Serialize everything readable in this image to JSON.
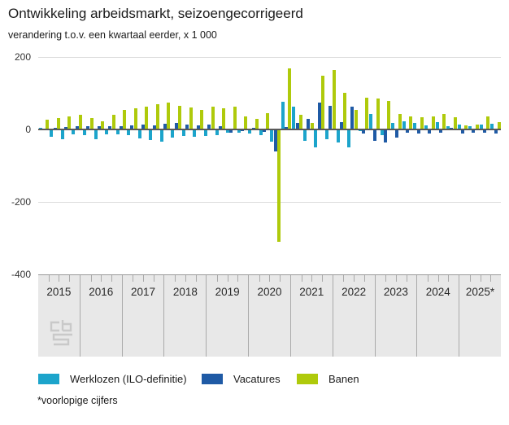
{
  "header": {
    "title": "Ontwikkeling arbeidsmarkt, seizoengecorrigeerd",
    "subtitle": "verandering t.o.v. een kwartaal eerder, x 1 000"
  },
  "footnote": "*voorlopige cijfers",
  "colors": {
    "werklozen": "#1ca4cb",
    "vacatures": "#1f5aa5",
    "banen": "#afca0b",
    "zero_axis": "#595959",
    "gridline": "#dcdcdc",
    "band_background": "#e8e8e8",
    "logo_gray": "#c9c9c9"
  },
  "legend": {
    "items": [
      {
        "label": "Werklozen (ILO-definitie)",
        "series": "werklozen"
      },
      {
        "label": "Vacatures",
        "series": "vacatures"
      },
      {
        "label": "Banen",
        "series": "banen"
      }
    ]
  },
  "axis": {
    "yticks": [
      200,
      0,
      -200,
      -400
    ],
    "years": [
      "2015",
      "2016",
      "2017",
      "2018",
      "2019",
      "2020",
      "2021",
      "2022",
      "2023",
      "2024",
      "2025*"
    ]
  },
  "logo_name": "cbs-logo",
  "chart_data": {
    "type": "bar",
    "title": "Ontwikkeling arbeidsmarkt, seizoengecorrigeerd",
    "subtitle": "verandering t.o.v. een kwartaal eerder, x 1 000",
    "xlabel": "",
    "ylabel": "verandering t.o.v. een kwartaal eerder, x 1 000",
    "ylim": [
      -400,
      200
    ],
    "grid": "horizontal",
    "legend_position": "bottom",
    "categories": [
      "2015 Q1",
      "2015 Q2",
      "2015 Q3",
      "2015 Q4",
      "2016 Q1",
      "2016 Q2",
      "2016 Q3",
      "2016 Q4",
      "2017 Q1",
      "2017 Q2",
      "2017 Q3",
      "2017 Q4",
      "2018 Q1",
      "2018 Q2",
      "2018 Q3",
      "2018 Q4",
      "2019 Q1",
      "2019 Q2",
      "2019 Q3",
      "2019 Q4",
      "2020 Q1",
      "2020 Q2",
      "2020 Q3",
      "2020 Q4",
      "2021 Q1",
      "2021 Q2",
      "2021 Q3",
      "2021 Q4",
      "2022 Q1",
      "2022 Q2",
      "2022 Q3",
      "2022 Q4",
      "2023 Q1",
      "2023 Q2",
      "2023 Q3",
      "2023 Q4",
      "2024 Q1",
      "2024 Q2",
      "2024 Q3",
      "2024 Q4",
      "2025 Q1",
      "2025 Q2"
    ],
    "series": [
      {
        "name": "Werklozen (ILO-definitie)",
        "key": "werklozen",
        "values": [
          5,
          -20,
          -26,
          -13,
          -16,
          -28,
          -13,
          -14,
          -15,
          -25,
          -30,
          -34,
          -23,
          -19,
          -20,
          -17,
          -15,
          -10,
          -9,
          -12,
          -15,
          -34,
          76,
          64,
          -31,
          -50,
          -27,
          -35,
          -50,
          -5,
          42,
          -16,
          18,
          22,
          17,
          12,
          20,
          10,
          14,
          10,
          13,
          15
        ]
      },
      {
        "name": "Vacatures",
        "key": "vacatures",
        "values": [
          3,
          5,
          6,
          8,
          8,
          8,
          9,
          10,
          11,
          14,
          12,
          15,
          17,
          13,
          12,
          13,
          8,
          -8,
          -5,
          4,
          -7,
          -60,
          6,
          19,
          29,
          75,
          65,
          20,
          62,
          -12,
          -32,
          -35,
          -23,
          -10,
          -11,
          -11,
          -8,
          5,
          -12,
          -10,
          -8,
          -12
        ]
      },
      {
        "name": "Banen",
        "key": "banen",
        "values": [
          26,
          31,
          36,
          40,
          32,
          22,
          40,
          53,
          59,
          64,
          70,
          74,
          66,
          60,
          55,
          62,
          59,
          62,
          36,
          29,
          45,
          -310,
          169,
          40,
          18,
          148,
          165,
          102,
          54,
          88,
          86,
          78,
          42,
          37,
          33,
          37,
          42,
          33,
          12,
          14,
          37,
          20
        ]
      }
    ]
  }
}
